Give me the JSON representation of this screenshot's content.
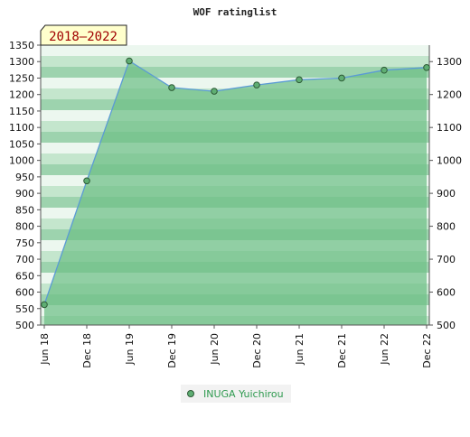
{
  "chart_data": {
    "type": "area",
    "title": "WOF ratinglist",
    "period_badge": "2018—2022",
    "categories": [
      "Jun 18",
      "Dec 18",
      "Jun 19",
      "Dec 19",
      "Jun 20",
      "Dec 20",
      "Jun 21",
      "Dec 21",
      "Jun 22",
      "Dec 22"
    ],
    "series": [
      {
        "name": "INUGA Yuichirou",
        "values": [
          562,
          938,
          1302,
          1221,
          1210,
          1229,
          1245,
          1250,
          1274,
          1282
        ]
      }
    ],
    "left_axis": {
      "ylim": [
        500,
        1350
      ],
      "ticks": [
        1350,
        1300,
        1250,
        1200,
        1150,
        1100,
        1050,
        1000,
        950,
        900,
        850,
        800,
        750,
        700,
        650,
        600,
        550,
        500
      ]
    },
    "right_axis": {
      "ylim": [
        500,
        1350
      ],
      "ticks": [
        1300,
        1200,
        1100,
        1000,
        900,
        800,
        700,
        600,
        500
      ]
    },
    "grid": true,
    "legend_position": "bottom-center",
    "colors": {
      "line": "#5b9bd5",
      "fill": "#6dbf86",
      "marker": "#5fae73",
      "legend_text": "#2e9a4f",
      "badge_bg": "#ffffcc",
      "badge_text": "#a00000",
      "band_light": "#ecf7ef",
      "band_mid": "#c4e6cd",
      "band_dark": "#9dd3ae"
    }
  }
}
